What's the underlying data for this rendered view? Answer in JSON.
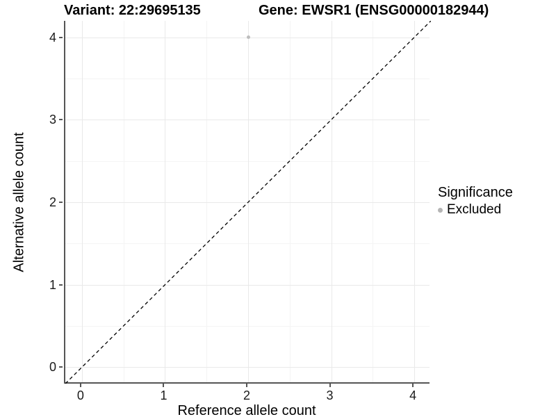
{
  "title": {
    "variant": "Variant: 22:29695135",
    "gene": "Gene: EWSR1 (ENSG00000182944)"
  },
  "chart_data": {
    "type": "scatter",
    "xlabel": "Reference allele count",
    "ylabel": "Alternative allele count",
    "xlim": [
      -0.2,
      4.2
    ],
    "ylim": [
      -0.2,
      4.2
    ],
    "xticks": [
      0,
      1,
      2,
      3,
      4
    ],
    "yticks": [
      0,
      1,
      2,
      3,
      4
    ],
    "minor_xticks": [
      0.5,
      1.5,
      2.5,
      3.5
    ],
    "minor_yticks": [
      0.5,
      1.5,
      2.5,
      3.5
    ],
    "grid": true,
    "series": [
      {
        "name": "Excluded",
        "color": "#bdbdbd",
        "points": [
          {
            "x": 2,
            "y": 4
          }
        ]
      }
    ],
    "reference_line": {
      "equation": "y=x",
      "style": "dashed",
      "color": "#000000"
    },
    "legend": {
      "title": "Significance",
      "position": "right",
      "entries": [
        {
          "label": "Excluded",
          "color": "#b5b5b5"
        }
      ]
    }
  },
  "colors": {
    "background": "#ffffff",
    "grid_major": "#e9e9e9",
    "grid_minor": "#f4f4f4",
    "axis_line": "#555555",
    "tick_text": "#1a1a1a",
    "point": "#bdbdbd"
  }
}
